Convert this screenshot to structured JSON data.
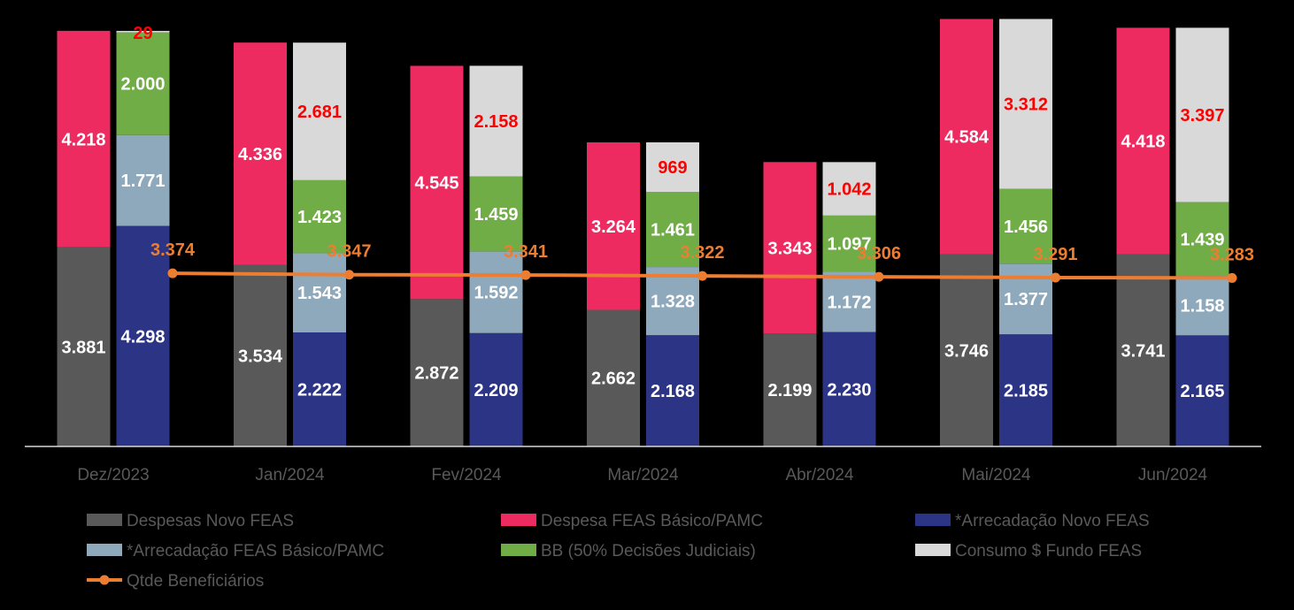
{
  "chart_data": {
    "type": "bar",
    "stacked": true,
    "categories": [
      "Dez/2023",
      "Jan/2024",
      "Fev/2024",
      "Mar/2024",
      "Abr/2024",
      "Mai/2024",
      "Jun/2024"
    ],
    "bar_groups": [
      {
        "name": "despesas",
        "series": [
          {
            "key": "despesas_novo",
            "name": "Despesas Novo FEAS",
            "color": "#595959",
            "label_color": "#ffffff",
            "values": [
              3881,
              3534,
              2872,
              2662,
              2199,
              3746,
              3741
            ],
            "labels": [
              "3.881",
              "3.534",
              "2.872",
              "2.662",
              "2.199",
              "3.746",
              "3.741"
            ]
          },
          {
            "key": "despesa_basico",
            "name": "Despesa FEAS Básico/PAMC",
            "color": "#ed2b61",
            "label_color": "#ffffff",
            "values": [
              4218,
              4336,
              4545,
              3264,
              3343,
              4584,
              4418
            ],
            "labels": [
              "4.218",
              "4.336",
              "4.545",
              "3.264",
              "3.343",
              "4.584",
              "4.418"
            ]
          }
        ]
      },
      {
        "name": "arrecadacao",
        "series": [
          {
            "key": "arrec_novo",
            "name": "*Arrecadação Novo FEAS",
            "color": "#2c3486",
            "label_color": "#ffffff",
            "values": [
              4298,
              2222,
              2209,
              2168,
              2230,
              2185,
              2165
            ],
            "labels": [
              "4.298",
              "2.222",
              "2.209",
              "2.168",
              "2.230",
              "2.185",
              "2.165"
            ]
          },
          {
            "key": "arrec_basico",
            "name": "*Arrecadação FEAS Básico/PAMC",
            "color": "#8ea9bb",
            "label_color": "#ffffff",
            "values": [
              1771,
              1543,
              1592,
              1328,
              1172,
              1377,
              1158
            ],
            "labels": [
              "1.771",
              "1.543",
              "1.592",
              "1.328",
              "1.172",
              "1.377",
              "1.158"
            ]
          },
          {
            "key": "bb",
            "name": "BB (50% Decisões Judiciais)",
            "color": "#70ad47",
            "label_color": "#ffffff",
            "values": [
              2000,
              1423,
              1459,
              1461,
              1097,
              1456,
              1439
            ],
            "labels": [
              "2.000",
              "1.423",
              "1.459",
              "1.461",
              "1.097",
              "1.456",
              "1.439"
            ]
          },
          {
            "key": "consumo",
            "name": "Consumo $ Fundo FEAS",
            "color": "#d9d9d9",
            "label_color": "#ff0000",
            "values": [
              29,
              2681,
              2158,
              969,
              1042,
              3312,
              3397
            ],
            "labels": [
              "29",
              "2.681",
              "2.158",
              "969",
              "1.042",
              "3.312",
              "3.397"
            ]
          }
        ]
      }
    ],
    "line_series": {
      "name": "Qtde Beneficiários",
      "color": "#ed7d31",
      "values": [
        3374,
        3347,
        3341,
        3322,
        3306,
        3291,
        3283
      ],
      "labels": [
        "3.374",
        "3.347",
        "3.341",
        "3.322",
        "3.306",
        "3.291",
        "3.283"
      ]
    },
    "legend": [
      "Despesas Novo FEAS",
      "Despesa FEAS Básico/PAMC",
      "*Arrecadação Novo FEAS",
      "*Arrecadação FEAS Básico/PAMC",
      "BB (50% Decisões Judiciais)",
      "Consumo $ Fundo FEAS",
      "Qtde Beneficiários"
    ],
    "legend_position": "bottom",
    "ylim": [
      0,
      8700
    ],
    "title": "",
    "xlabel": "",
    "ylabel": ""
  }
}
